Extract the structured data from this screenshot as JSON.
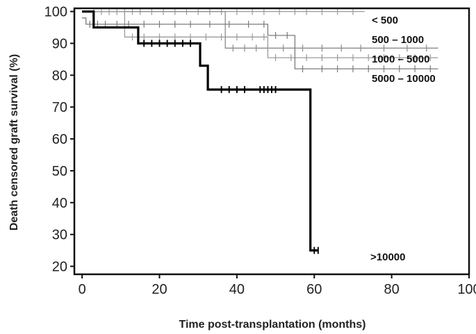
{
  "chart_data": {
    "type": "line",
    "title": "",
    "xlabel": "Time post-transplantation (months)",
    "ylabel": "Death censored graft survival (%)",
    "xlim": [
      -2,
      100
    ],
    "ylim": [
      17.5,
      101
    ],
    "xticks": [
      0,
      20,
      40,
      60,
      80,
      100
    ],
    "yticks": [
      20,
      30,
      40,
      50,
      60,
      70,
      80,
      90,
      100
    ],
    "grid": false,
    "legend": "right",
    "series": [
      {
        "name": "< 500",
        "steps": [
          [
            0,
            100
          ],
          [
            73,
            100
          ]
        ],
        "censor": [
          3,
          5,
          7,
          9,
          11,
          13,
          15,
          18,
          21,
          24,
          27,
          30,
          33,
          36,
          40,
          44,
          47,
          51,
          55,
          58,
          62,
          66,
          70
        ]
      },
      {
        "name": "500 – 1000",
        "steps": [
          [
            0,
            100
          ],
          [
            37,
            100
          ],
          [
            37,
            88.5
          ],
          [
            92,
            88.5
          ]
        ],
        "censor": [
          39,
          42,
          45,
          48,
          52,
          57,
          62,
          67,
          72,
          78,
          84,
          89
        ]
      },
      {
        "name": "1000 – 5000",
        "steps": [
          [
            0,
            100
          ],
          [
            11,
            100
          ],
          [
            11,
            92
          ],
          [
            48,
            92
          ],
          [
            48,
            85.5
          ],
          [
            92,
            85.5
          ]
        ],
        "censor": [
          13,
          16,
          20,
          24,
          28,
          32,
          36,
          40,
          44,
          47,
          50,
          54,
          58,
          62,
          66,
          70,
          74,
          78,
          82,
          86,
          90
        ]
      },
      {
        "name": "5000 – 10000",
        "steps": [
          [
            0,
            98
          ],
          [
            1,
            98
          ],
          [
            1,
            96
          ],
          [
            48,
            96
          ],
          [
            48,
            92.5
          ],
          [
            55,
            92.5
          ],
          [
            55,
            82
          ],
          [
            92,
            82
          ]
        ],
        "censor": [
          2,
          4,
          6,
          9,
          12,
          16,
          20,
          24,
          28,
          33,
          38,
          43,
          47,
          50,
          53,
          57,
          62,
          66,
          70,
          74,
          78,
          82,
          86,
          90
        ]
      },
      {
        "name": ">10000",
        "steps": [
          [
            0,
            100
          ],
          [
            3,
            100
          ],
          [
            3,
            95
          ],
          [
            14.5,
            95
          ],
          [
            14.5,
            90
          ],
          [
            30.5,
            90
          ],
          [
            30.5,
            83
          ],
          [
            32.5,
            83
          ],
          [
            32.5,
            75.5
          ],
          [
            59,
            75.5
          ],
          [
            59,
            25
          ],
          [
            61,
            25
          ]
        ],
        "censor": [
          16,
          18,
          20,
          22,
          24,
          26,
          28,
          36,
          38,
          40,
          42,
          46,
          47,
          48,
          49,
          50,
          60,
          61
        ]
      }
    ]
  }
}
